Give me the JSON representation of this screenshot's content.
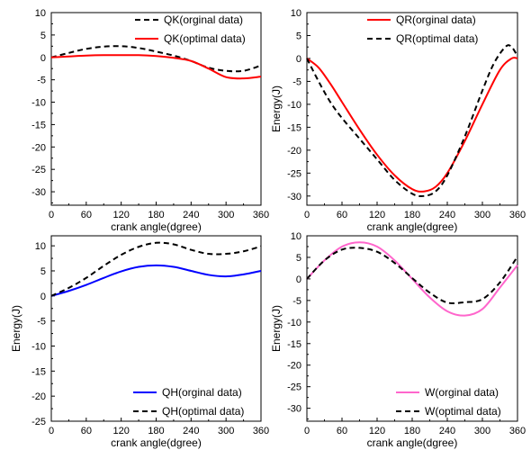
{
  "chart_data": [
    {
      "type": "line",
      "xlabel": "crank angle(dgree)",
      "ylabel": "",
      "xlim": [
        0,
        360
      ],
      "ylim": [
        -33,
        10
      ],
      "xticks": [
        0,
        60,
        120,
        180,
        240,
        300,
        360
      ],
      "yticks": [
        10,
        5,
        0,
        -5,
        -10,
        -15,
        -20,
        -25,
        -30
      ],
      "legend_position": "top-right",
      "series": [
        {
          "name": "QK(orginal data)",
          "color": "#000000",
          "dash": "dashed",
          "x": [
            0,
            30,
            60,
            90,
            120,
            150,
            180,
            210,
            240,
            270,
            300,
            330,
            360
          ],
          "y": [
            0,
            1.0,
            1.9,
            2.4,
            2.5,
            2.1,
            1.3,
            0.4,
            -0.8,
            -2.3,
            -3.0,
            -3.0,
            -1.8
          ]
        },
        {
          "name": "QK(optimal data)",
          "color": "#ff0000",
          "dash": "solid",
          "x": [
            0,
            30,
            60,
            90,
            120,
            150,
            180,
            210,
            240,
            270,
            300,
            330,
            360
          ],
          "y": [
            0,
            0.2,
            0.4,
            0.5,
            0.5,
            0.5,
            0.3,
            -0.1,
            -0.8,
            -2.5,
            -4.4,
            -4.7,
            -4.3
          ]
        }
      ]
    },
    {
      "type": "line",
      "xlabel": "crank angle(dgree)",
      "ylabel": "Energy(J)",
      "xlim": [
        0,
        360
      ],
      "ylim": [
        -32,
        10
      ],
      "xticks": [
        0,
        60,
        120,
        180,
        240,
        300,
        360
      ],
      "yticks": [
        10,
        5,
        0,
        -5,
        -10,
        -15,
        -20,
        -25,
        -30
      ],
      "legend_position": "top-right",
      "series": [
        {
          "name": "QR(orginal data)",
          "color": "#ff0000",
          "dash": "solid",
          "x": [
            0,
            20,
            40,
            60,
            90,
            120,
            150,
            180,
            200,
            220,
            240,
            270,
            300,
            330,
            350,
            360
          ],
          "y": [
            0,
            -2.0,
            -5.5,
            -9.5,
            -15.5,
            -21.0,
            -25.5,
            -28.5,
            -29.0,
            -28.0,
            -25.0,
            -18.0,
            -10.0,
            -2.5,
            0,
            0
          ]
        },
        {
          "name": "QR(optimal data)",
          "color": "#000000",
          "dash": "dashed",
          "x": [
            0,
            20,
            40,
            60,
            90,
            120,
            150,
            180,
            200,
            220,
            240,
            270,
            300,
            320,
            340,
            350,
            360
          ],
          "y": [
            0,
            -5.0,
            -9.5,
            -13.0,
            -17.5,
            -22.0,
            -26.5,
            -29.5,
            -30.0,
            -29.0,
            -25.5,
            -17.0,
            -7.0,
            -1.0,
            2.6,
            2.5,
            0.5
          ]
        }
      ]
    },
    {
      "type": "line",
      "xlabel": "crank angle(dgree)",
      "ylabel": "Energy(J)",
      "xlim": [
        0,
        360
      ],
      "ylim": [
        -25,
        12
      ],
      "xticks": [
        0,
        60,
        120,
        180,
        240,
        300,
        360
      ],
      "yticks": [
        10,
        5,
        0,
        -5,
        -10,
        -15,
        -20,
        -25
      ],
      "legend_position": "bottom-right",
      "series": [
        {
          "name": "QH(orginal data)",
          "color": "#0000ff",
          "dash": "solid",
          "x": [
            0,
            30,
            60,
            90,
            120,
            150,
            180,
            210,
            240,
            270,
            300,
            330,
            360
          ],
          "y": [
            0,
            1.0,
            2.2,
            3.6,
            4.9,
            5.8,
            6.1,
            5.8,
            5.0,
            4.2,
            3.9,
            4.3,
            5.0
          ]
        },
        {
          "name": "QH(optimal data)",
          "color": "#000000",
          "dash": "dashed",
          "x": [
            0,
            30,
            60,
            90,
            120,
            150,
            180,
            210,
            240,
            270,
            300,
            330,
            360
          ],
          "y": [
            0,
            1.6,
            3.6,
            6.0,
            8.2,
            9.8,
            10.6,
            10.3,
            9.2,
            8.4,
            8.4,
            8.9,
            9.9
          ]
        }
      ]
    },
    {
      "type": "line",
      "xlabel": "crank angle(dgree)",
      "ylabel": "Energy(J)",
      "xlim": [
        0,
        360
      ],
      "ylim": [
        -33,
        10
      ],
      "xticks": [
        0,
        60,
        120,
        180,
        240,
        300,
        360
      ],
      "yticks": [
        10,
        5,
        0,
        -5,
        -10,
        -15,
        -20,
        -25,
        -30
      ],
      "legend_position": "bottom-right",
      "series": [
        {
          "name": "W(orginal data)",
          "color": "#ff66cc",
          "dash": "solid",
          "x": [
            0,
            30,
            60,
            90,
            120,
            150,
            180,
            210,
            240,
            270,
            300,
            330,
            360
          ],
          "y": [
            0,
            4.3,
            7.5,
            8.5,
            7.5,
            4.3,
            0,
            -4.3,
            -7.5,
            -8.5,
            -7.0,
            -2.0,
            3.2
          ]
        },
        {
          "name": "W(optimal data)",
          "color": "#000000",
          "dash": "dashed",
          "x": [
            0,
            30,
            60,
            90,
            120,
            150,
            180,
            210,
            240,
            270,
            300,
            330,
            360
          ],
          "y": [
            0,
            4.3,
            6.8,
            7.2,
            6.3,
            3.7,
            0.2,
            -3.2,
            -5.5,
            -5.4,
            -4.7,
            -0.8,
            5.2
          ]
        }
      ]
    }
  ]
}
